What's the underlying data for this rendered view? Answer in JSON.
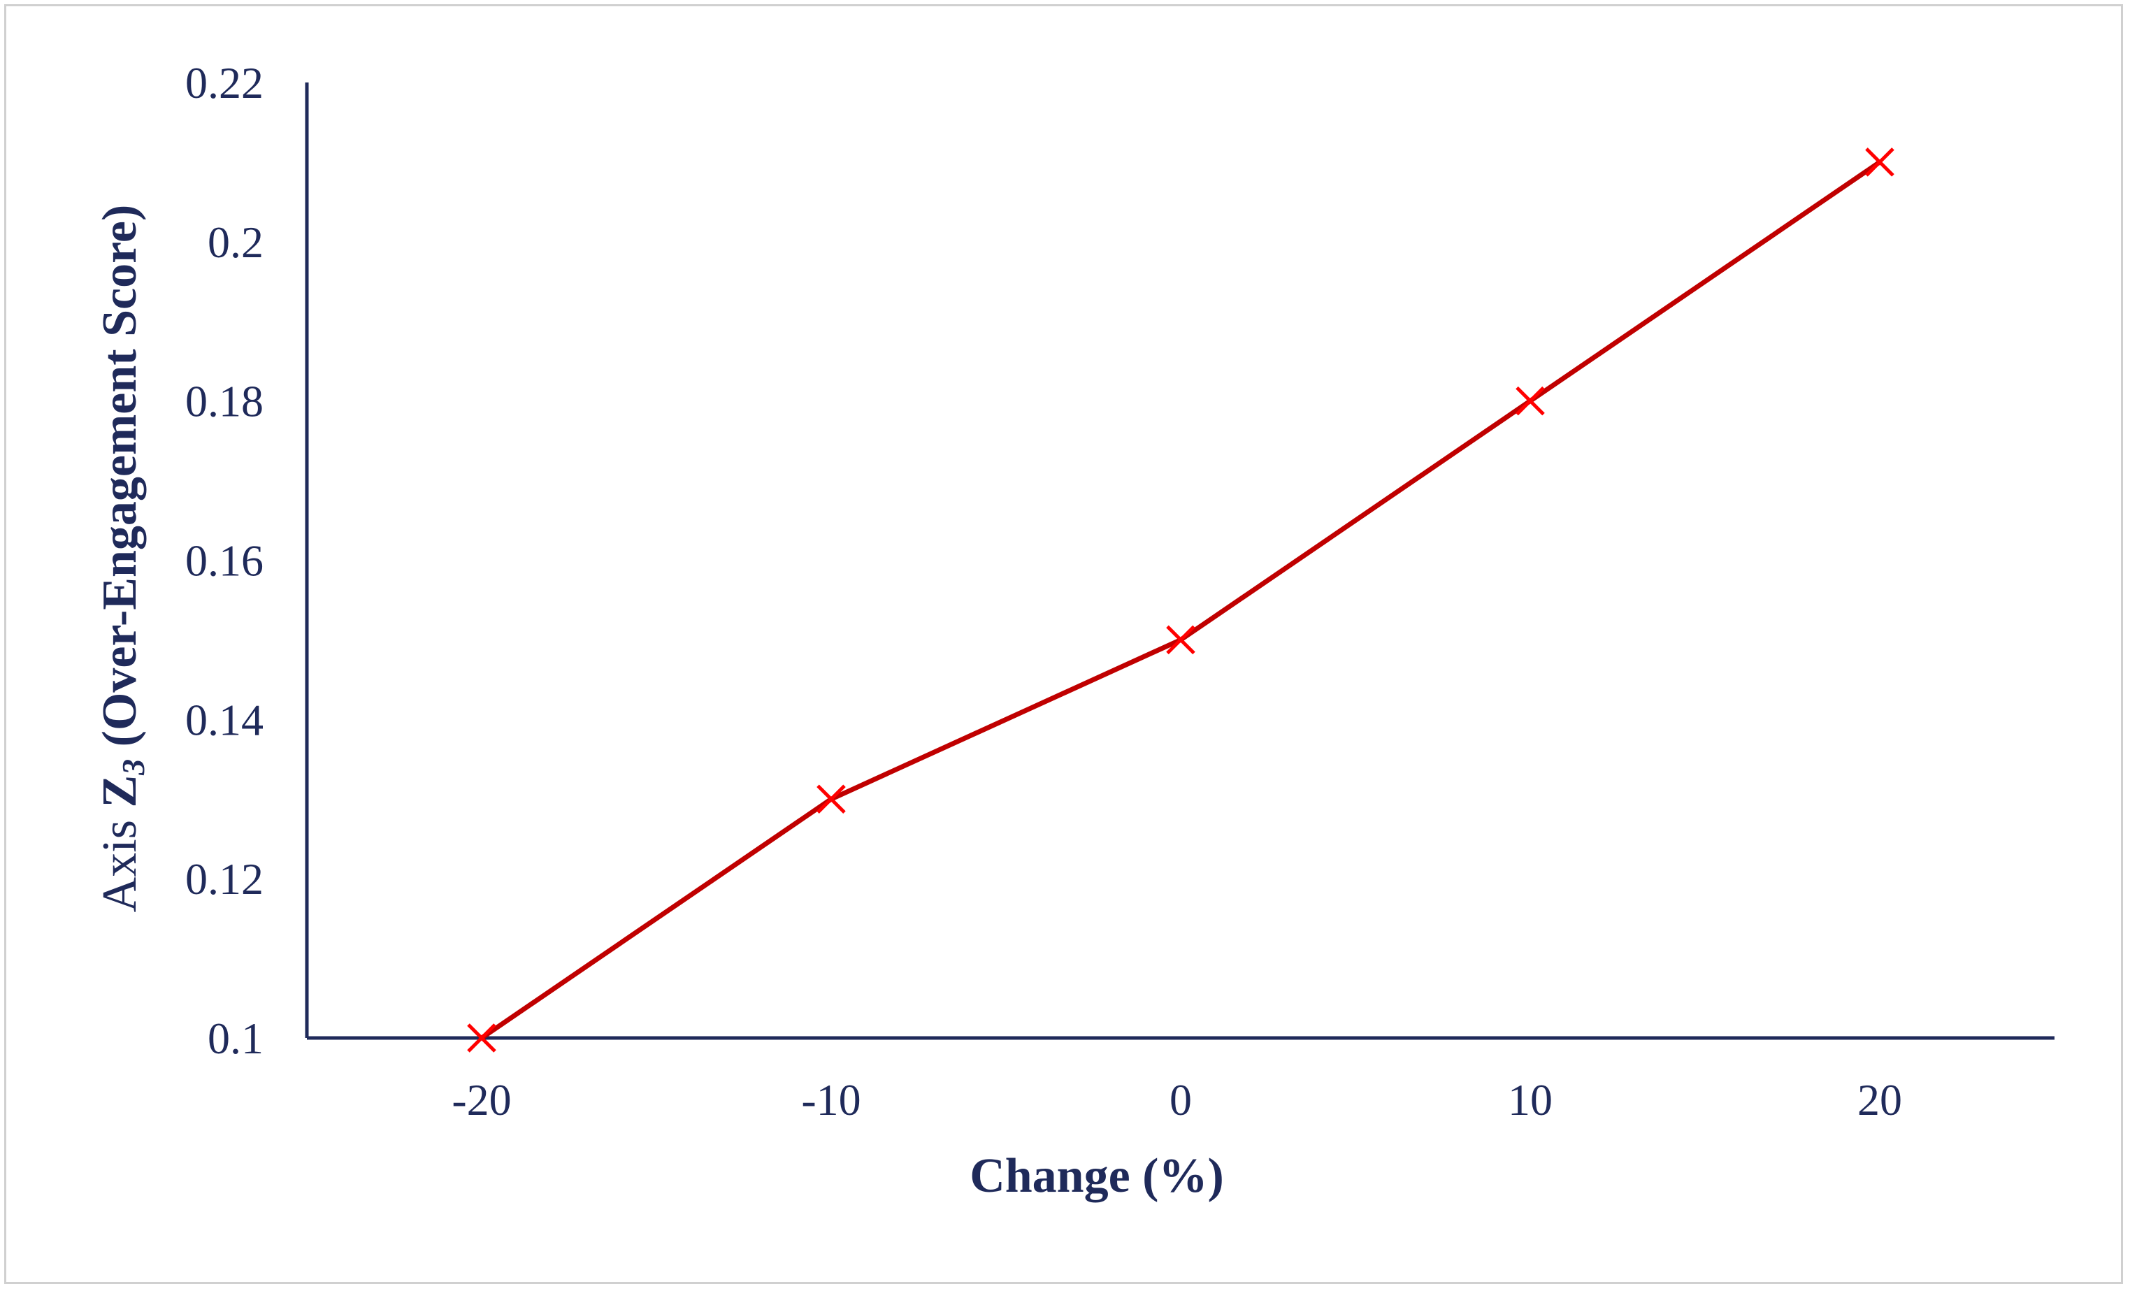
{
  "chart_data": {
    "type": "line",
    "title": "",
    "xlabel": "Change (%)",
    "ylabel": {
      "prefix": "Axis ",
      "symbol": "Z",
      "subscript": "3",
      "suffix": " (Over-Engagement Score)"
    },
    "x": [
      -20,
      -10,
      0,
      10,
      20
    ],
    "xlim": [
      -25,
      25
    ],
    "xticks": [
      -20,
      -10,
      0,
      10,
      20
    ],
    "ylim": [
      0.1,
      0.22
    ],
    "yticks": [
      0.1,
      0.12,
      0.14,
      0.16,
      0.18,
      0.2,
      0.22
    ],
    "ytick_labels": [
      "0.1",
      "0.12",
      "0.14",
      "0.16",
      "0.18",
      "0.2",
      "0.22"
    ],
    "series": [
      {
        "values": [
          0.1,
          0.13,
          0.15,
          0.18,
          0.21
        ],
        "marker": "x"
      }
    ],
    "grid": false,
    "legend": "none",
    "colors": {
      "line": "#c00000",
      "marker": "#ff0000",
      "axis": "#1f2a5a",
      "text": "#1f2a5a",
      "frame": "#d0d0d0"
    }
  }
}
